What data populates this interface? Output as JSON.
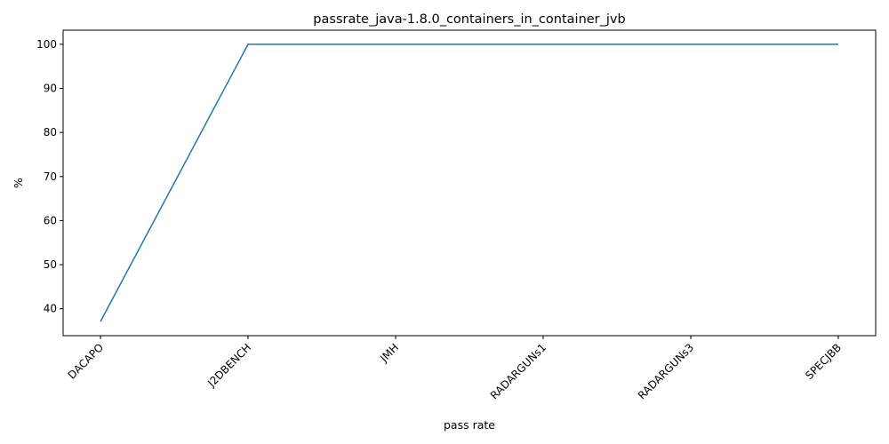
{
  "chart_data": {
    "type": "line",
    "title": "passrate_java-1.8.0_containers_in_container_jvb",
    "xlabel": "pass rate",
    "ylabel": "%",
    "categories": [
      "DACAPO",
      "J2DBENCH",
      "JMH",
      "RADARGUNs1",
      "RADARGUNs3",
      "SPECJBB"
    ],
    "series": [
      {
        "values": [
          37.1,
          100,
          100,
          100,
          100,
          100
        ],
        "color": "#1f77b4"
      }
    ],
    "ylim": [
      33.9,
      103.2
    ],
    "yticks": [
      40,
      50,
      60,
      70,
      80,
      90,
      100
    ],
    "grid": false,
    "legend": "none"
  }
}
